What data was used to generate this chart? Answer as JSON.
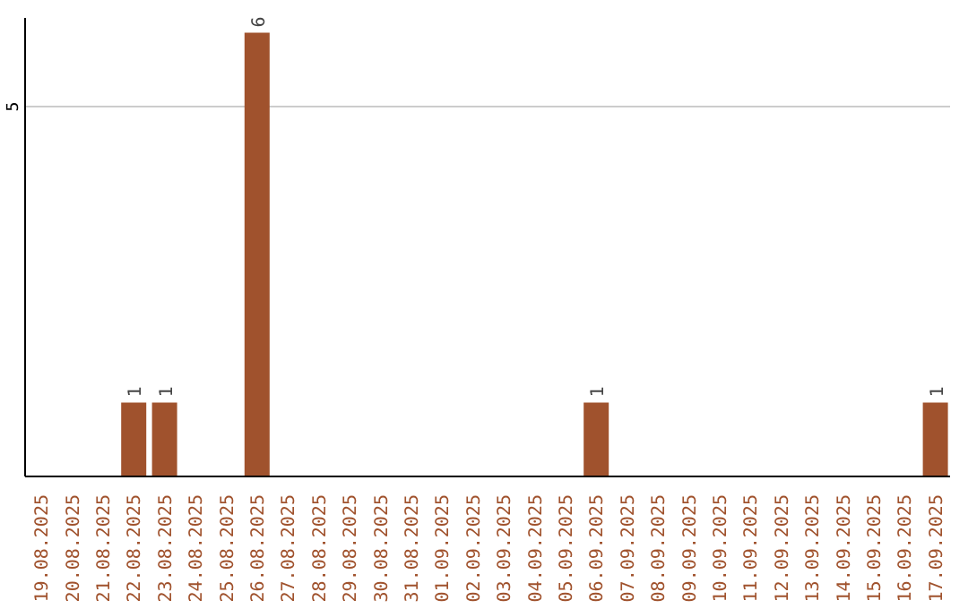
{
  "chart_data": {
    "type": "bar",
    "categories": [
      "19.08.2025",
      "20.08.2025",
      "21.08.2025",
      "22.08.2025",
      "23.08.2025",
      "24.08.2025",
      "25.08.2025",
      "26.08.2025",
      "27.08.2025",
      "28.08.2025",
      "29.08.2025",
      "30.08.2025",
      "31.08.2025",
      "01.09.2025",
      "02.09.2025",
      "03.09.2025",
      "04.09.2025",
      "05.09.2025",
      "06.09.2025",
      "07.09.2025",
      "08.09.2025",
      "09.09.2025",
      "10.09.2025",
      "11.09.2025",
      "12.09.2025",
      "13.09.2025",
      "14.09.2025",
      "15.09.2025",
      "16.09.2025",
      "17.09.2025"
    ],
    "values": [
      0,
      0,
      0,
      1,
      1,
      0,
      0,
      6,
      0,
      0,
      0,
      0,
      0,
      0,
      0,
      0,
      0,
      0,
      1,
      0,
      0,
      0,
      0,
      0,
      0,
      0,
      0,
      0,
      0,
      1
    ],
    "value_labels": [
      null,
      null,
      null,
      "1",
      "1",
      null,
      null,
      "6",
      null,
      null,
      null,
      null,
      null,
      null,
      null,
      null,
      null,
      null,
      "1",
      null,
      null,
      null,
      null,
      null,
      null,
      null,
      null,
      null,
      null,
      "1"
    ],
    "color": "#a0522d",
    "ylim": [
      0,
      6.2
    ],
    "yticks": [
      5
    ],
    "grid": "y"
  }
}
